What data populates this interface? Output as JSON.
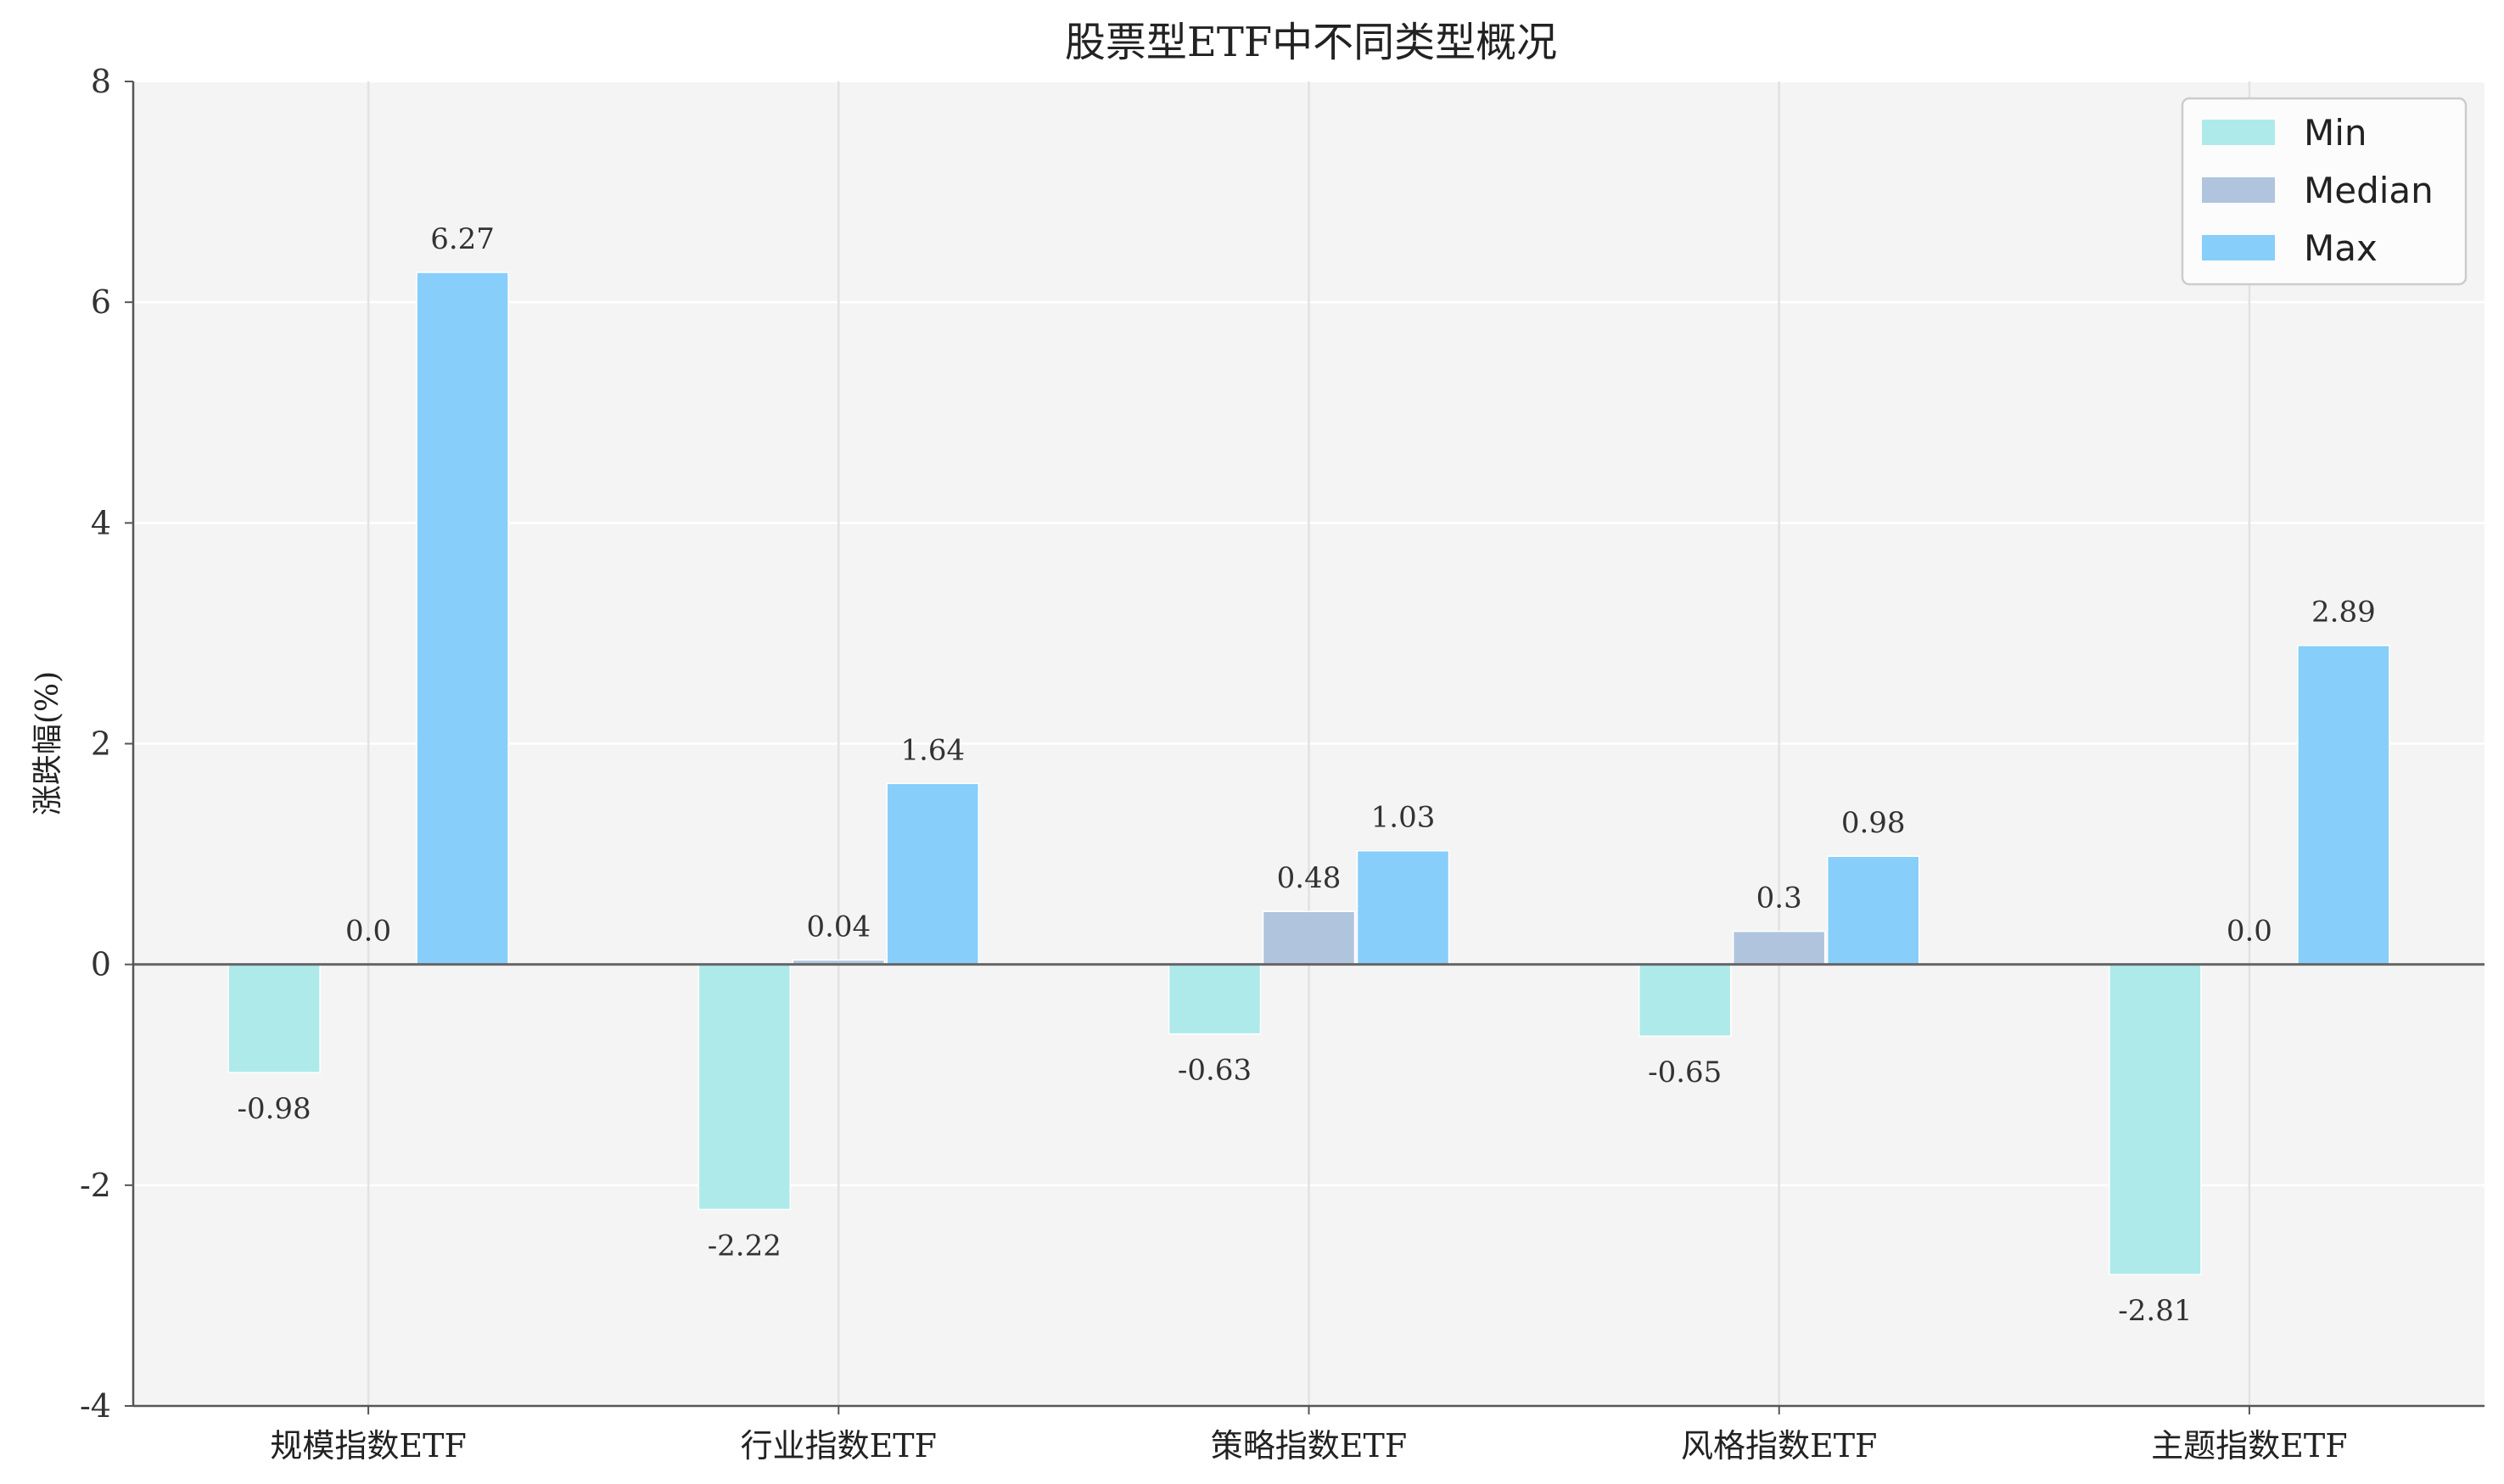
{
  "chart_data": {
    "type": "bar",
    "title": "股票型ETF中不同类型概况",
    "xlabel": "",
    "ylabel": "涨跌幅(%)",
    "categories": [
      "规模指数ETF",
      "行业指数ETF",
      "策略指数ETF",
      "风格指数ETF",
      "主题指数ETF"
    ],
    "series": [
      {
        "name": "Min",
        "color": "#aeeaea",
        "values": [
          -0.98,
          -2.22,
          -0.63,
          -0.65,
          -2.81
        ]
      },
      {
        "name": "Median",
        "color": "#b0c4de",
        "values": [
          0.0,
          0.04,
          0.48,
          0.3,
          0.0
        ]
      },
      {
        "name": "Max",
        "color": "#87cefa",
        "values": [
          6.27,
          1.64,
          1.03,
          0.98,
          2.89
        ]
      }
    ],
    "value_labels": [
      [
        "-0.98",
        "-2.22",
        "-0.63",
        "-0.65",
        "-2.81"
      ],
      [
        "0.0",
        "0.04",
        "0.48",
        "0.3",
        "0.0"
      ],
      [
        "6.27",
        "1.64",
        "1.03",
        "0.98",
        "2.89"
      ]
    ],
    "ylim": [
      -4,
      8
    ],
    "yticks": [
      -4,
      -2,
      0,
      2,
      4,
      6,
      8
    ],
    "ytick_labels": [
      "-4",
      "-2",
      "0",
      "2",
      "4",
      "6",
      "8"
    ],
    "grid": true,
    "legend_position": "top-right",
    "background": "#f4f4f4"
  }
}
